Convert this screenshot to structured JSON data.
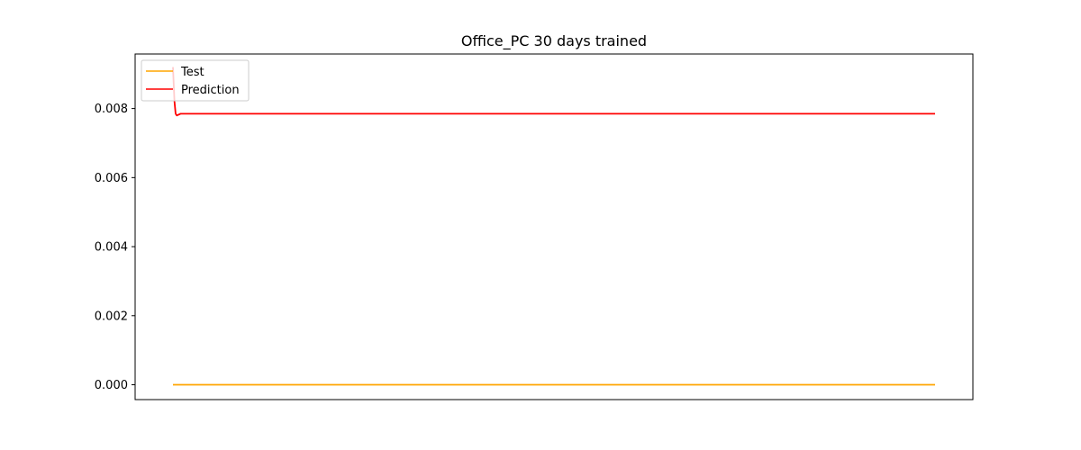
{
  "chart_data": {
    "type": "line",
    "title": "Office_PC 30 days trained",
    "xlabel": "",
    "ylabel": "",
    "x_ticks_visible": false,
    "ylim": [
      -0.00043,
      0.00958
    ],
    "yticks": [
      0.0,
      0.002,
      0.004,
      0.006,
      0.008
    ],
    "ytick_labels": [
      "0.000",
      "0.002",
      "0.004",
      "0.006",
      "0.008"
    ],
    "grid": false,
    "legend_position": "upper-left",
    "series": [
      {
        "name": "Test",
        "color": "#ffa500",
        "x": [
          0,
          1,
          2,
          100
        ],
        "y": [
          0.0,
          0.0,
          0.0,
          0.0
        ]
      },
      {
        "name": "Prediction",
        "color": "#ff0000",
        "x": [
          0,
          0.2,
          0.35,
          0.5,
          1,
          2,
          100
        ],
        "y": [
          0.0092,
          0.0082,
          0.00785,
          0.0078,
          0.00785,
          0.00785,
          0.00785
        ]
      }
    ]
  }
}
